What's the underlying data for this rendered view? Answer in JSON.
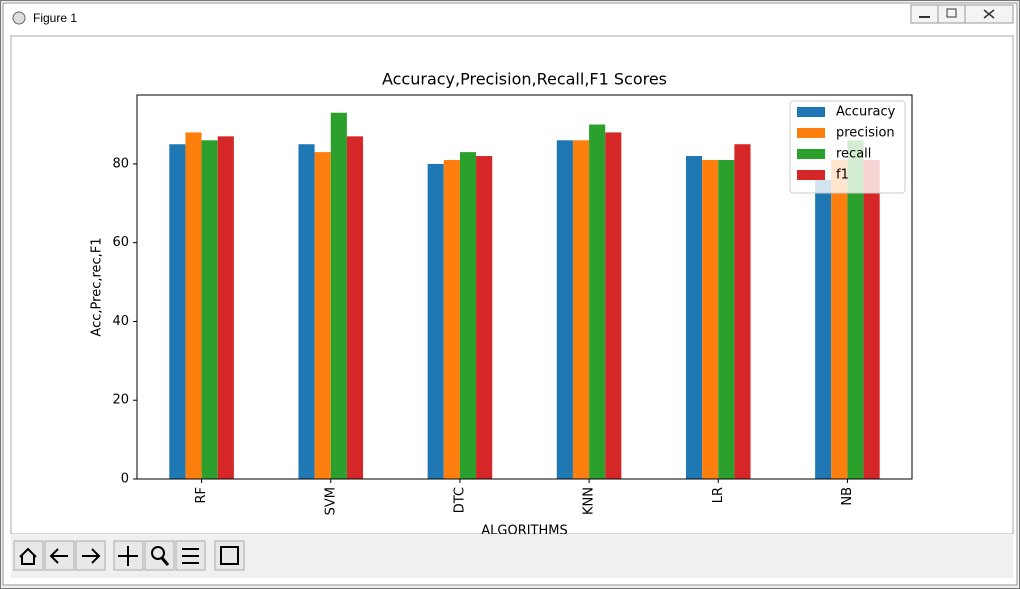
{
  "window": {
    "title": "Figure 1"
  },
  "chart_data": {
    "type": "bar",
    "title": "Accuracy,Precision,Recall,F1 Scores",
    "x_label": "ALGORITHMS",
    "y_label": "Acc,Prec,rec,F1",
    "categories": [
      "RF",
      "SVM",
      "DTC",
      "KNN",
      "LR",
      "NB"
    ],
    "series": [
      {
        "name": "Accuracy",
        "color": "#1f77b4",
        "values": [
          85,
          85,
          80,
          86,
          82,
          76
        ]
      },
      {
        "name": "precision",
        "color": "#ff7f0e",
        "values": [
          88,
          83,
          81,
          86,
          81,
          81
        ]
      },
      {
        "name": "recall",
        "color": "#2ca02c",
        "values": [
          86,
          93,
          83,
          90,
          81,
          86
        ]
      },
      {
        "name": "f1",
        "color": "#d62728",
        "values": [
          87,
          87,
          82,
          88,
          85,
          81
        ]
      }
    ],
    "ylim": [
      0,
      97.5
    ],
    "yticks": [
      0,
      20,
      40,
      60,
      80
    ],
    "grid": false,
    "legend": "upper right"
  }
}
